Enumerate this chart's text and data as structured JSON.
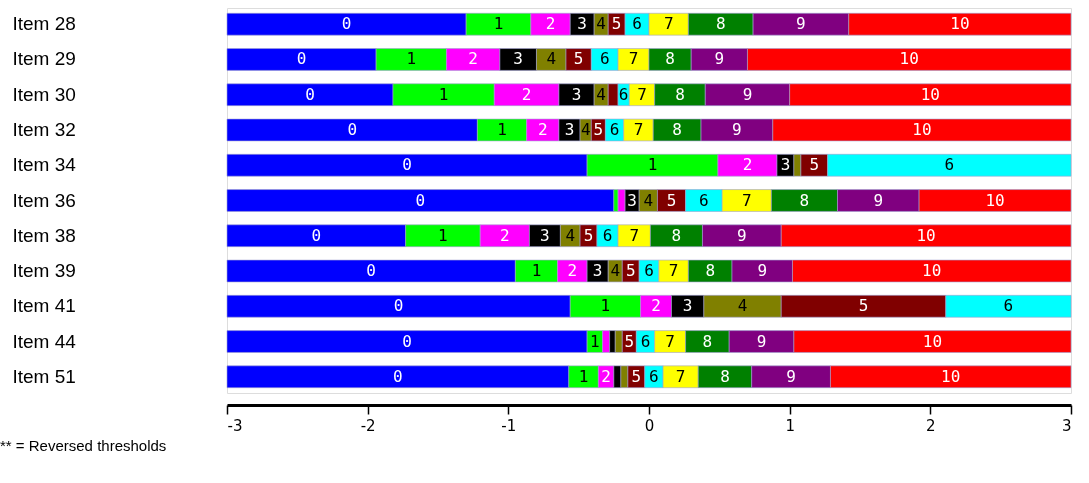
{
  "chart_data": {
    "type": "bar",
    "orientation": "horizontal",
    "categories": [
      "Item 28",
      "Item 29",
      "Item 30",
      "Item 32",
      "Item 34",
      "Item 36",
      "Item 38",
      "Item 39",
      "Item 41",
      "Item 44",
      "Item 51"
    ],
    "series": [
      {
        "name": "0",
        "color": "#0000ff",
        "values": [
          1.7,
          1.06,
          1.18,
          1.78,
          2.56,
          2.75,
          1.27,
          2.05,
          2.44,
          2.56,
          2.43
        ],
        "base": [
          -3,
          -3,
          -3,
          -3,
          -3,
          -3,
          -3,
          -3,
          -3,
          -3,
          -3
        ]
      },
      {
        "name": "1",
        "color": "#00ff00",
        "values": [
          0.46,
          0.5,
          0.72,
          0.35,
          0.93,
          0.03,
          0.53,
          0.3,
          0.5,
          0.11,
          0.21
        ],
        "base": [
          -1.3,
          -1.94,
          -1.82,
          -1.22,
          -0.44,
          -0.25,
          -1.73,
          -0.95,
          -0.56,
          -0.44,
          -0.57
        ]
      },
      {
        "name": "2",
        "color": "#ff00ff",
        "values": [
          0.28,
          0.38,
          0.46,
          0.23,
          0.42,
          0.05,
          0.35,
          0.21,
          0.22,
          0.05,
          0.11
        ],
        "base": [
          -0.84,
          -1.44,
          -1.1,
          -0.87,
          0.49,
          -0.22,
          -1.2,
          -0.65,
          -0.06,
          -0.33,
          -0.36
        ]
      },
      {
        "name": "3",
        "color": "#000000",
        "values": [
          0.17,
          0.26,
          0.25,
          0.15,
          0.12,
          0.1,
          0.22,
          0.15,
          0.23,
          0.04,
          0.05
        ],
        "base": [
          -0.56,
          -1.06,
          -0.64,
          -0.64,
          0.91,
          -0.17,
          -0.85,
          -0.44,
          0.16,
          -0.28,
          -0.25
        ]
      },
      {
        "name": "4",
        "color": "#808000",
        "values": [
          0.1,
          0.21,
          0.1,
          0.08,
          0.05,
          0.13,
          0.14,
          0.1,
          0.55,
          0.05,
          0.05
        ],
        "base": [
          -0.39,
          -0.8,
          -0.39,
          -0.49,
          1.03,
          -0.07,
          -0.63,
          -0.29,
          0.39,
          -0.24,
          -0.2
        ]
      },
      {
        "name": "5",
        "color": "#800000",
        "values": [
          0.12,
          0.18,
          0.07,
          0.1,
          0.19,
          0.2,
          0.12,
          0.12,
          1.17,
          0.1,
          0.12
        ],
        "base": [
          -0.29,
          -0.59,
          -0.29,
          -0.41,
          1.08,
          0.06,
          -0.49,
          -0.19,
          0.94,
          -0.19,
          -0.15
        ]
      },
      {
        "name": "6",
        "color": "#00ffff",
        "values": [
          0.17,
          0.19,
          0.08,
          0.13,
          1.73,
          0.26,
          0.15,
          0.14,
          0.89,
          0.13,
          0.13
        ],
        "base": [
          -0.17,
          -0.41,
          -0.22,
          -0.31,
          1.27,
          0.26,
          -0.37,
          -0.07,
          2.11,
          -0.09,
          -0.03
        ]
      },
      {
        "name": "7",
        "color": "#ffff00",
        "values": [
          0.28,
          0.22,
          0.18,
          0.21,
          null,
          0.35,
          0.23,
          0.21,
          null,
          0.22,
          0.25
        ],
        "base": [
          0.0,
          -0.22,
          -0.14,
          -0.18,
          null,
          0.52,
          -0.22,
          0.07,
          null,
          0.04,
          0.1
        ]
      },
      {
        "name": "8",
        "color": "#008000",
        "values": [
          0.46,
          0.3,
          0.36,
          0.34,
          null,
          0.47,
          0.37,
          0.31,
          null,
          0.31,
          0.38
        ],
        "base": [
          0.28,
          0.0,
          0.04,
          0.03,
          null,
          0.87,
          0.01,
          0.28,
          null,
          0.26,
          0.35
        ]
      },
      {
        "name": "9",
        "color": "#800080",
        "values": [
          0.68,
          0.4,
          0.6,
          0.51,
          null,
          0.58,
          0.56,
          0.43,
          null,
          0.46,
          0.56
        ],
        "base": [
          0.74,
          0.3,
          0.4,
          0.37,
          null,
          1.34,
          0.38,
          0.59,
          null,
          0.57,
          0.73
        ]
      },
      {
        "name": "10",
        "color": "#ff0000",
        "values": [
          1.58,
          2.3,
          2.0,
          2.12,
          null,
          1.08,
          2.06,
          1.98,
          null,
          1.97,
          1.71
        ],
        "base": [
          1.42,
          0.7,
          1.0,
          0.88,
          null,
          1.92,
          0.94,
          1.02,
          null,
          1.03,
          1.29
        ]
      }
    ],
    "xlim": [
      -3,
      3
    ],
    "xticks": [
      -3,
      -2,
      -1,
      0,
      1,
      2,
      3
    ],
    "grid": false,
    "legend": false,
    "annotations": [
      "** = Reversed thresholds"
    ]
  }
}
